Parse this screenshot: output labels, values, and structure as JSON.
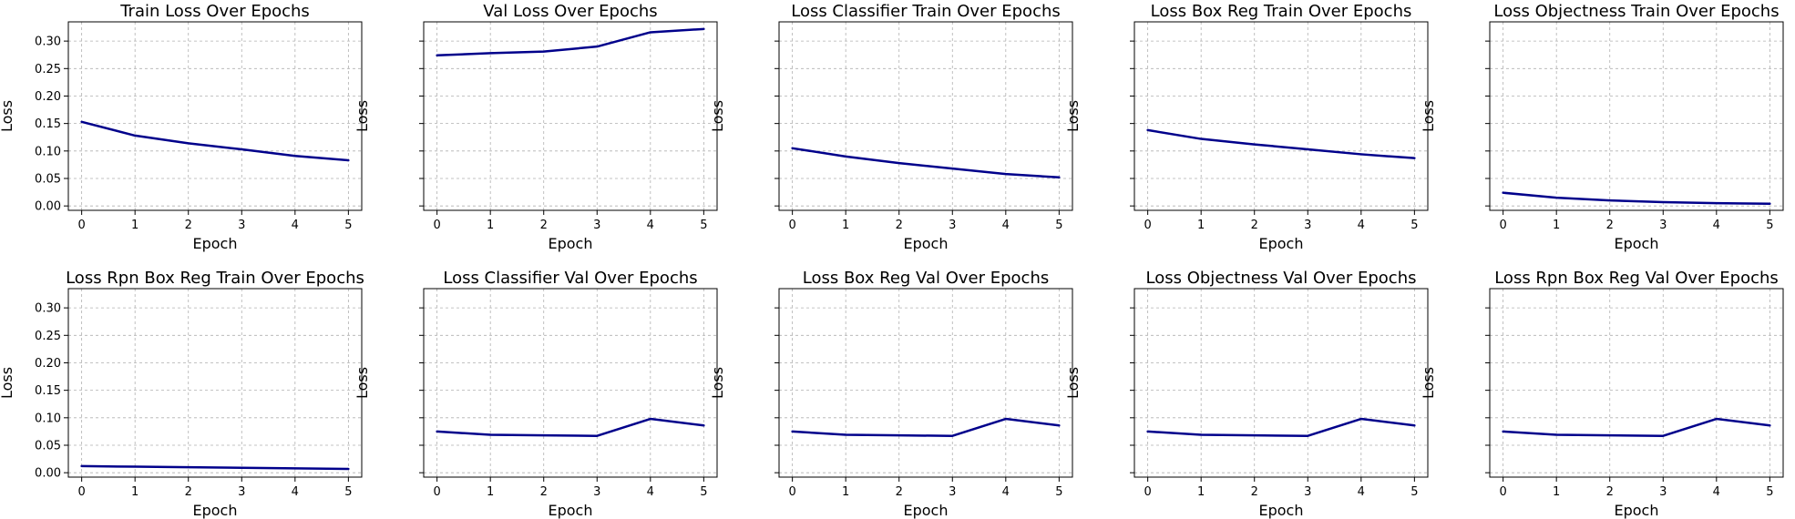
{
  "chart_data": [
    {
      "type": "line",
      "title": "Train Loss Over Epochs",
      "xlabel": "Epoch",
      "ylabel": "Loss",
      "x": [
        0,
        1,
        2,
        3,
        4,
        5
      ],
      "ylim": [
        -0.008,
        0.335
      ],
      "yticks": [
        "0.00",
        "0.05",
        "0.10",
        "0.15",
        "0.20",
        "0.25",
        "0.30"
      ],
      "xticks": [
        "0",
        "1",
        "2",
        "3",
        "4",
        "5"
      ],
      "show_ytick_labels": true,
      "grid": true,
      "series": [
        {
          "values": [
            0.153,
            0.128,
            0.114,
            0.103,
            0.091,
            0.083
          ]
        }
      ]
    },
    {
      "type": "line",
      "title": "Val Loss Over Epochs",
      "xlabel": "Epoch",
      "ylabel": "Loss",
      "x": [
        0,
        1,
        2,
        3,
        4,
        5
      ],
      "ylim": [
        -0.008,
        0.335
      ],
      "yticks": [
        "0.00",
        "0.05",
        "0.10",
        "0.15",
        "0.20",
        "0.25",
        "0.30"
      ],
      "xticks": [
        "0",
        "1",
        "2",
        "3",
        "4",
        "5"
      ],
      "show_ytick_labels": false,
      "grid": true,
      "series": [
        {
          "values": [
            0.274,
            0.278,
            0.281,
            0.29,
            0.316,
            0.322
          ]
        }
      ]
    },
    {
      "type": "line",
      "title": "Loss Classifier Train Over Epochs",
      "xlabel": "Epoch",
      "ylabel": "Loss",
      "x": [
        0,
        1,
        2,
        3,
        4,
        5
      ],
      "ylim": [
        -0.008,
        0.335
      ],
      "yticks": [
        "0.00",
        "0.05",
        "0.10",
        "0.15",
        "0.20",
        "0.25",
        "0.30"
      ],
      "xticks": [
        "0",
        "1",
        "2",
        "3",
        "4",
        "5"
      ],
      "show_ytick_labels": false,
      "grid": true,
      "series": [
        {
          "values": [
            0.105,
            0.09,
            0.078,
            0.068,
            0.058,
            0.052
          ]
        }
      ]
    },
    {
      "type": "line",
      "title": "Loss Box Reg Train Over Epochs",
      "xlabel": "Epoch",
      "ylabel": "Loss",
      "x": [
        0,
        1,
        2,
        3,
        4,
        5
      ],
      "ylim": [
        -0.008,
        0.335
      ],
      "yticks": [
        "0.00",
        "0.05",
        "0.10",
        "0.15",
        "0.20",
        "0.25",
        "0.30"
      ],
      "xticks": [
        "0",
        "1",
        "2",
        "3",
        "4",
        "5"
      ],
      "show_ytick_labels": false,
      "grid": true,
      "series": [
        {
          "values": [
            0.138,
            0.122,
            0.112,
            0.103,
            0.094,
            0.087
          ]
        }
      ]
    },
    {
      "type": "line",
      "title": "Loss Objectness Train Over Epochs",
      "xlabel": "Epoch",
      "ylabel": "Loss",
      "x": [
        0,
        1,
        2,
        3,
        4,
        5
      ],
      "ylim": [
        -0.008,
        0.335
      ],
      "yticks": [
        "0.00",
        "0.05",
        "0.10",
        "0.15",
        "0.20",
        "0.25",
        "0.30"
      ],
      "xticks": [
        "0",
        "1",
        "2",
        "3",
        "4",
        "5"
      ],
      "show_ytick_labels": false,
      "grid": true,
      "series": [
        {
          "values": [
            0.024,
            0.015,
            0.01,
            0.007,
            0.005,
            0.004
          ]
        }
      ]
    },
    {
      "type": "line",
      "title": "Loss Rpn Box Reg Train Over Epochs",
      "xlabel": "Epoch",
      "ylabel": "Loss",
      "x": [
        0,
        1,
        2,
        3,
        4,
        5
      ],
      "ylim": [
        -0.008,
        0.335
      ],
      "yticks": [
        "0.00",
        "0.05",
        "0.10",
        "0.15",
        "0.20",
        "0.25",
        "0.30"
      ],
      "xticks": [
        "0",
        "1",
        "2",
        "3",
        "4",
        "5"
      ],
      "show_ytick_labels": true,
      "grid": true,
      "series": [
        {
          "values": [
            0.012,
            0.011,
            0.01,
            0.009,
            0.008,
            0.007
          ]
        }
      ]
    },
    {
      "type": "line",
      "title": "Loss Classifier Val Over Epochs",
      "xlabel": "Epoch",
      "ylabel": "Loss",
      "x": [
        0,
        1,
        2,
        3,
        4,
        5
      ],
      "ylim": [
        -0.008,
        0.335
      ],
      "yticks": [
        "0.00",
        "0.05",
        "0.10",
        "0.15",
        "0.20",
        "0.25",
        "0.30"
      ],
      "xticks": [
        "0",
        "1",
        "2",
        "3",
        "4",
        "5"
      ],
      "show_ytick_labels": false,
      "grid": true,
      "series": [
        {
          "values": [
            0.075,
            0.069,
            0.068,
            0.067,
            0.098,
            0.086
          ]
        }
      ]
    },
    {
      "type": "line",
      "title": "Loss Box Reg Val Over Epochs",
      "xlabel": "Epoch",
      "ylabel": "Loss",
      "x": [
        0,
        1,
        2,
        3,
        4,
        5
      ],
      "ylim": [
        -0.008,
        0.335
      ],
      "yticks": [
        "0.00",
        "0.05",
        "0.10",
        "0.15",
        "0.20",
        "0.25",
        "0.30"
      ],
      "xticks": [
        "0",
        "1",
        "2",
        "3",
        "4",
        "5"
      ],
      "show_ytick_labels": false,
      "grid": true,
      "series": [
        {
          "values": [
            0.075,
            0.069,
            0.068,
            0.067,
            0.098,
            0.086
          ]
        }
      ]
    },
    {
      "type": "line",
      "title": "Loss Objectness Val Over Epochs",
      "xlabel": "Epoch",
      "ylabel": "Loss",
      "x": [
        0,
        1,
        2,
        3,
        4,
        5
      ],
      "ylim": [
        -0.008,
        0.335
      ],
      "yticks": [
        "0.00",
        "0.05",
        "0.10",
        "0.15",
        "0.20",
        "0.25",
        "0.30"
      ],
      "xticks": [
        "0",
        "1",
        "2",
        "3",
        "4",
        "5"
      ],
      "show_ytick_labels": false,
      "grid": true,
      "series": [
        {
          "values": [
            0.075,
            0.069,
            0.068,
            0.067,
            0.098,
            0.086
          ]
        }
      ]
    },
    {
      "type": "line",
      "title": "Loss Rpn Box Reg Val Over Epochs",
      "xlabel": "Epoch",
      "ylabel": "Loss",
      "x": [
        0,
        1,
        2,
        3,
        4,
        5
      ],
      "ylim": [
        -0.008,
        0.335
      ],
      "yticks": [
        "0.00",
        "0.05",
        "0.10",
        "0.15",
        "0.20",
        "0.25",
        "0.30"
      ],
      "xticks": [
        "0",
        "1",
        "2",
        "3",
        "4",
        "5"
      ],
      "show_ytick_labels": false,
      "grid": true,
      "series": [
        {
          "values": [
            0.075,
            0.069,
            0.068,
            0.067,
            0.098,
            0.086
          ]
        }
      ]
    }
  ],
  "colors": {
    "line": "#00008b",
    "grid": "#b0b0b0",
    "frame": "#000000",
    "background": "#ffffff"
  }
}
